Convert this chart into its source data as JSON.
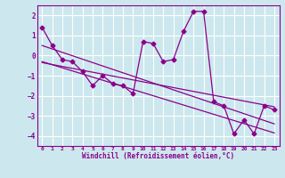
{
  "xlabel": "Windchill (Refroidissement éolien,°C)",
  "background_color": "#cce8ee",
  "grid_color": "#ffffff",
  "line_color": "#8b008b",
  "xlim": [
    -0.5,
    23.5
  ],
  "ylim": [
    -4.5,
    2.5
  ],
  "yticks": [
    -4,
    -3,
    -2,
    -1,
    0,
    1,
    2
  ],
  "xticks": [
    0,
    1,
    2,
    3,
    4,
    5,
    6,
    7,
    8,
    9,
    10,
    11,
    12,
    13,
    14,
    15,
    16,
    17,
    18,
    19,
    20,
    21,
    22,
    23
  ],
  "series": [
    [
      0,
      1.4
    ],
    [
      1,
      0.5
    ],
    [
      2,
      -0.2
    ],
    [
      3,
      -0.3
    ],
    [
      4,
      -0.8
    ],
    [
      5,
      -1.5
    ],
    [
      6,
      -1.0
    ],
    [
      7,
      -1.4
    ],
    [
      8,
      -1.5
    ],
    [
      9,
      -1.9
    ],
    [
      10,
      0.7
    ],
    [
      11,
      0.6
    ],
    [
      12,
      -0.3
    ],
    [
      13,
      -0.2
    ],
    [
      14,
      1.2
    ],
    [
      15,
      2.2
    ],
    [
      16,
      2.2
    ],
    [
      17,
      -2.3
    ],
    [
      18,
      -2.5
    ],
    [
      19,
      -3.9
    ],
    [
      20,
      -3.2
    ],
    [
      21,
      -3.9
    ],
    [
      22,
      -2.5
    ],
    [
      23,
      -2.7
    ]
  ],
  "linear_series_1": [
    [
      0,
      0.5
    ],
    [
      23,
      -3.4
    ]
  ],
  "linear_series_2": [
    [
      0,
      -0.3
    ],
    [
      23,
      -3.85
    ]
  ],
  "linear_series_3": [
    [
      0,
      -0.35
    ],
    [
      23,
      -2.55
    ]
  ]
}
